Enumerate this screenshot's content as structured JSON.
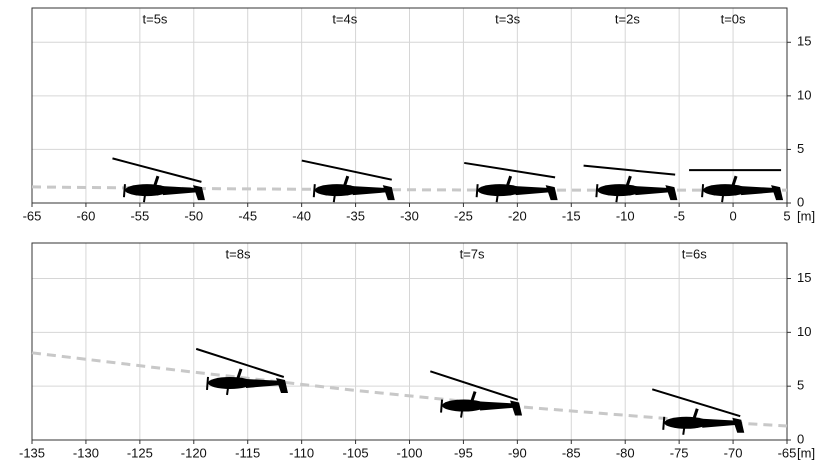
{
  "chart_data": [
    {
      "type": "line",
      "x_unit": "[m]",
      "xlim": [
        -65,
        5
      ],
      "xticks": [
        -65,
        -60,
        -55,
        -50,
        -45,
        -40,
        -35,
        -30,
        -25,
        -20,
        -15,
        -10,
        -5,
        0,
        5
      ],
      "ylim": [
        0,
        18.2
      ],
      "yticks": [
        0,
        5,
        10,
        15
      ],
      "grid": true,
      "series": [
        {
          "color": "#c8c8c8",
          "x": [
            -65,
            -50,
            -35,
            -20,
            -5,
            5
          ],
          "values": [
            1.5,
            1.35,
            1.25,
            1.2,
            1.2,
            1.2
          ]
        }
      ],
      "snapshots": {
        "labels": [
          "t=5s",
          "t=4s",
          "t=3s",
          "t=2s",
          "t=0s"
        ],
        "x": [
          -53.6,
          -36,
          -20.9,
          -9.8,
          0
        ],
        "y": [
          1.2,
          1.2,
          1.2,
          1.2,
          1.2
        ],
        "rotor_tilt": [
          14.8,
          12,
          9,
          5.6,
          0
        ]
      }
    },
    {
      "type": "line",
      "x_unit": "[m]",
      "xlim": [
        -135,
        -65
      ],
      "xticks": [
        -135,
        -130,
        -125,
        -120,
        -115,
        -110,
        -105,
        -100,
        -95,
        -90,
        -85,
        -80,
        -75,
        -70,
        -65
      ],
      "ylim": [
        0,
        18.3
      ],
      "yticks": [
        0,
        5,
        10,
        15
      ],
      "grid": true,
      "series": [
        {
          "color": "#c8c8c8",
          "x": [
            -135,
            -120,
            -105,
            -90,
            -75,
            -65
          ],
          "values": [
            8.1,
            6.3,
            4.6,
            3.1,
            1.9,
            1.3
          ]
        }
      ],
      "snapshots": {
        "labels": [
          "t=8s",
          "t=7s",
          "t=6s"
        ],
        "x": [
          -115.9,
          -94.2,
          -73.6
        ],
        "y": [
          5.3,
          3.2,
          1.6
        ],
        "rotor_tilt": [
          17.8,
          18,
          17
        ]
      }
    }
  ]
}
